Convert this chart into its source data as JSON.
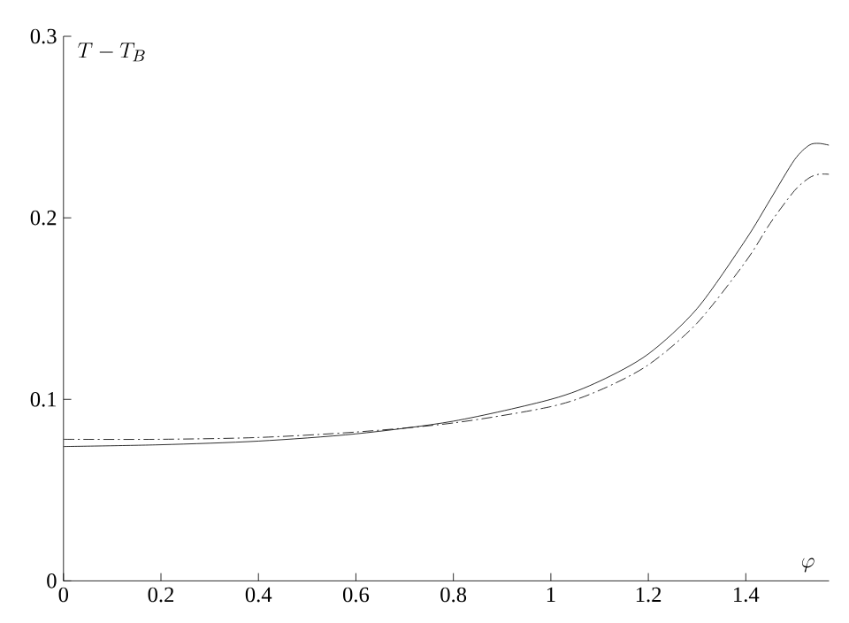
{
  "chart_data": {
    "type": "line",
    "xlabel": "\\varphi",
    "ylabel": "T - T_B",
    "xlim": [
      0,
      1.5708
    ],
    "ylim": [
      0,
      0.3
    ],
    "xticks": [
      0,
      0.2,
      0.4,
      0.6,
      0.8,
      1,
      1.2,
      1.4
    ],
    "yticks": [
      0,
      0.1,
      0.2,
      0.3
    ],
    "grid": false,
    "marker": "none",
    "x": [
      0,
      0.2,
      0.4,
      0.6,
      0.8,
      1.0,
      1.1,
      1.2,
      1.3,
      1.4,
      1.45,
      1.5,
      1.53,
      1.55,
      1.5708
    ],
    "series": [
      {
        "color": "#000000",
        "line_style": "solid",
        "values": [
          0.074,
          0.075,
          0.077,
          0.081,
          0.088,
          0.1,
          0.11,
          0.125,
          0.15,
          0.188,
          0.21,
          0.232,
          0.24,
          0.241,
          0.24
        ]
      },
      {
        "color": "#000000",
        "line_style": "dashed",
        "values": [
          0.078,
          0.078,
          0.079,
          0.082,
          0.087,
          0.096,
          0.105,
          0.119,
          0.142,
          0.176,
          0.197,
          0.215,
          0.222,
          0.224,
          0.224
        ]
      }
    ]
  }
}
